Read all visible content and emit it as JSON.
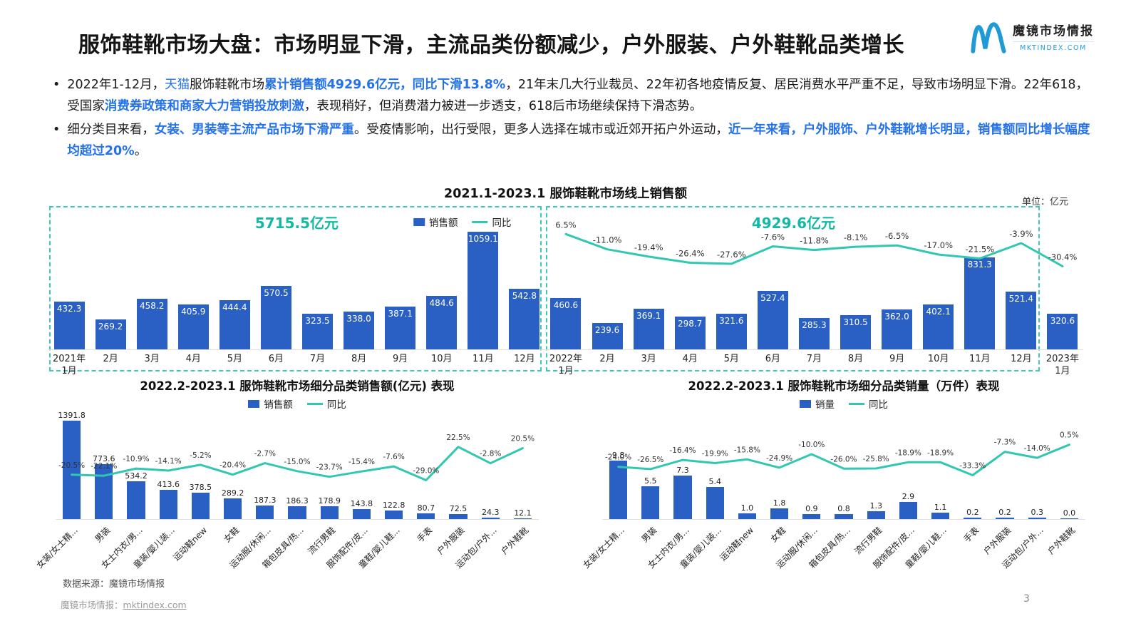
{
  "page": {
    "title": "服饰鞋靴市场大盘：市场明显下滑，主流品类份额减少，户外服装、户外鞋靴品类增长",
    "source_note": "数据来源：魔镜市场情报",
    "footer_brand": "魔镜市场情报：",
    "footer_link": "mktindex.com",
    "page_number": "3"
  },
  "logo": {
    "brand": "魔镜市场情报",
    "domain": "MKTINDEX.COM"
  },
  "colors": {
    "bar_blue": "#2a5fc4",
    "line_teal": "#31c7b0",
    "highlight_blue": "#2472ea",
    "teal_text": "#13b9a5",
    "logo_blue": "#1e9ad6",
    "dash_teal": "#3cc9b6"
  },
  "bullets": [
    {
      "segments": [
        {
          "text": "2022年1-12月，",
          "style": "normal"
        },
        {
          "text": "天猫",
          "style": "blue"
        },
        {
          "text": "服饰鞋靴市场",
          "style": "normal"
        },
        {
          "text": "累计销售额4929.6亿元，同比下滑13.8%",
          "style": "blue-bold"
        },
        {
          "text": "，21年末几大行业裁员、22年初各地疫情反复、居民消费水平严重不足，导致市场明显下滑。22年618，受国家",
          "style": "normal"
        },
        {
          "text": "消费券政策和商家大力营销投放刺激",
          "style": "blue-bold"
        },
        {
          "text": "，表现稍好，但消费潜力被进一步透支，618后市场继续保持下滑态势。",
          "style": "normal"
        }
      ]
    },
    {
      "segments": [
        {
          "text": "细分类目来看，",
          "style": "normal"
        },
        {
          "text": "女装、男装等主流产品市场下滑严重",
          "style": "blue-bold"
        },
        {
          "text": "。受疫情影响，出行受限，更多人选择在城市或近郊开拓户外运动，",
          "style": "normal"
        },
        {
          "text": "近一年来看，户外服饰、户外鞋靴增长明显，销售额同比增长幅度均超过20%",
          "style": "blue-bold"
        },
        {
          "text": "。",
          "style": "normal"
        }
      ]
    }
  ],
  "chart_data": [
    {
      "type": "bar",
      "title": "2021.1-2023.1 服饰鞋靴市场线上销售额",
      "unit": "单位：亿元",
      "legend": [
        "销售额",
        "同比"
      ],
      "legend_position": "top",
      "grid": false,
      "categories": [
        "2021年\n1月",
        "2月",
        "3月",
        "4月",
        "5月",
        "6月",
        "7月",
        "8月",
        "9月",
        "10月",
        "11月",
        "12月",
        "2022年\n1月",
        "2月",
        "3月",
        "4月",
        "5月",
        "6月",
        "7月",
        "8月",
        "9月",
        "10月",
        "11月",
        "12月",
        "2023年\n1月"
      ],
      "series": [
        {
          "name": "销售额",
          "type": "bar",
          "values": [
            432.3,
            269.2,
            458.2,
            405.9,
            444.4,
            570.5,
            323.5,
            338.0,
            387.1,
            484.6,
            1059.1,
            542.8,
            460.6,
            239.6,
            369.1,
            298.7,
            321.6,
            527.4,
            285.3,
            310.5,
            362.0,
            402.1,
            831.3,
            521.4,
            320.6
          ]
        },
        {
          "name": "同比",
          "type": "line",
          "unit": "%",
          "values": [
            null,
            null,
            null,
            null,
            null,
            null,
            null,
            null,
            null,
            null,
            null,
            null,
            6.5,
            -11.0,
            -19.4,
            -26.4,
            -27.6,
            -7.6,
            -11.8,
            -8.1,
            -6.5,
            -17.0,
            -21.5,
            -3.9,
            -30.4
          ]
        }
      ],
      "group_totals": [
        {
          "label": "5715.5亿元",
          "range": "2021年1月-12月"
        },
        {
          "label": "4929.6亿元",
          "range": "2022年1月-12月"
        }
      ]
    },
    {
      "type": "bar",
      "title": "2022.2-2023.1 服饰鞋靴市场细分品类销售额(亿元) 表现",
      "legend": [
        "销售额",
        "同比"
      ],
      "legend_position": "top",
      "grid": false,
      "categories": [
        "女装/女士精...",
        "男装",
        "女士内衣/男...",
        "童装/婴儿装...",
        "运动鞋new",
        "女鞋",
        "运动服/休闲...",
        "箱包皮具/热...",
        "流行男鞋",
        "服饰配件/皮...",
        "童鞋/婴儿鞋...",
        "手表",
        "户外服装",
        "运动包/户外...",
        "户外鞋靴"
      ],
      "series": [
        {
          "name": "销售额",
          "type": "bar",
          "values": [
            1391.8,
            773.6,
            534.2,
            413.6,
            378.5,
            289.2,
            187.3,
            186.3,
            178.9,
            143.8,
            122.8,
            80.7,
            72.5,
            24.3,
            12.1
          ]
        },
        {
          "name": "同比",
          "type": "line",
          "unit": "%",
          "values": [
            -20.5,
            -22.1,
            -10.9,
            -14.1,
            -5.2,
            -20.4,
            -2.7,
            -15.0,
            -23.7,
            -15.4,
            -7.6,
            -29.0,
            22.5,
            -2.8,
            20.5
          ]
        }
      ]
    },
    {
      "type": "bar",
      "title": "2022.2-2023.1 服饰鞋靴市场细分品类销量（万件）表现",
      "legend": [
        "销量",
        "同比"
      ],
      "legend_position": "top",
      "grid": false,
      "categories": [
        "女装/女士精...",
        "男装",
        "女士内衣/男...",
        "童装/婴儿装...",
        "运动鞋new",
        "女鞋",
        "运动服/休闲...",
        "箱包皮具/热...",
        "流行男鞋",
        "服饰配件/皮...",
        "童鞋/婴儿鞋...",
        "手表",
        "户外服装",
        "运动包/户外...",
        "户外鞋靴"
      ],
      "series": [
        {
          "name": "销量",
          "type": "bar",
          "values": [
            9.8,
            5.5,
            7.3,
            5.4,
            1.0,
            1.8,
            0.9,
            0.8,
            1.3,
            2.9,
            1.1,
            0.2,
            0.2,
            0.3,
            0.0
          ]
        },
        {
          "name": "同比",
          "type": "line",
          "unit": "%",
          "values": [
            -24.0,
            -26.5,
            -16.4,
            -19.9,
            -15.8,
            -24.9,
            -10.0,
            -26.0,
            -25.8,
            -18.9,
            -18.9,
            -33.3,
            -7.3,
            -14.0,
            0.5
          ]
        }
      ]
    }
  ]
}
